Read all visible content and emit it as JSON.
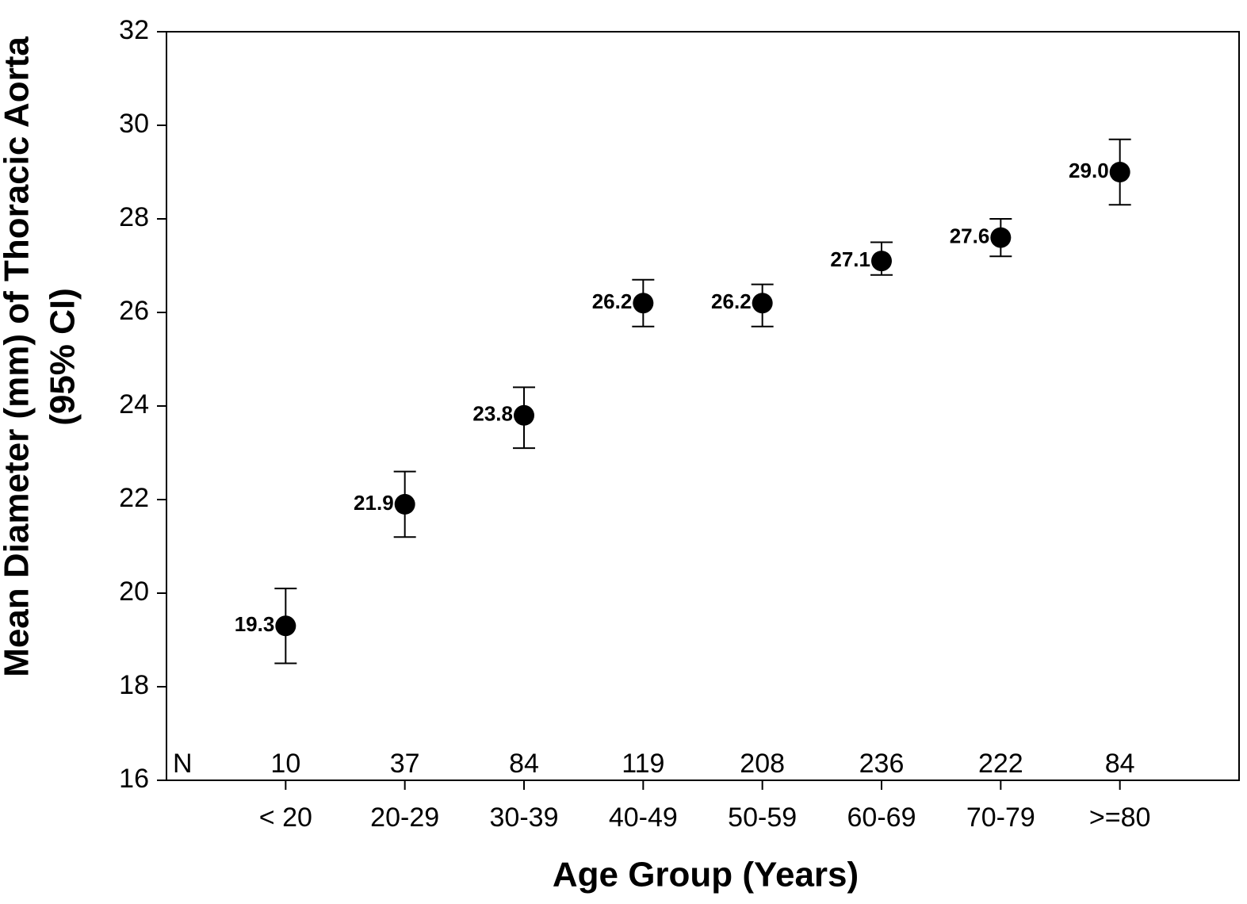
{
  "chart_data": {
    "type": "errorbar",
    "xlabel": "Age Group (Years)",
    "ylabel": [
      "Mean Diameter (mm) of Thoracic Aorta",
      "(95% CI)"
    ],
    "categories": [
      "< 20",
      "20-29",
      "30-39",
      "40-49",
      "50-59",
      "60-69",
      "70-79",
      ">=80"
    ],
    "values": [
      19.3,
      21.9,
      23.8,
      26.2,
      26.2,
      27.1,
      27.6,
      29.0
    ],
    "value_labels": [
      "19.3",
      "21.9",
      "23.8",
      "26.2",
      "26.2",
      "27.1",
      "27.6",
      "29.0"
    ],
    "ci_low": [
      18.5,
      21.2,
      23.1,
      25.7,
      25.7,
      26.8,
      27.2,
      28.3
    ],
    "ci_high": [
      20.1,
      22.6,
      24.4,
      26.7,
      26.6,
      27.5,
      28.0,
      29.7
    ],
    "n_label": "N",
    "n_values": [
      10,
      37,
      84,
      119,
      208,
      236,
      222,
      84
    ],
    "color": "#000000",
    "ylim": [
      16,
      32
    ],
    "yticks": [
      16,
      18,
      20,
      22,
      24,
      26,
      28,
      30,
      32
    ]
  }
}
